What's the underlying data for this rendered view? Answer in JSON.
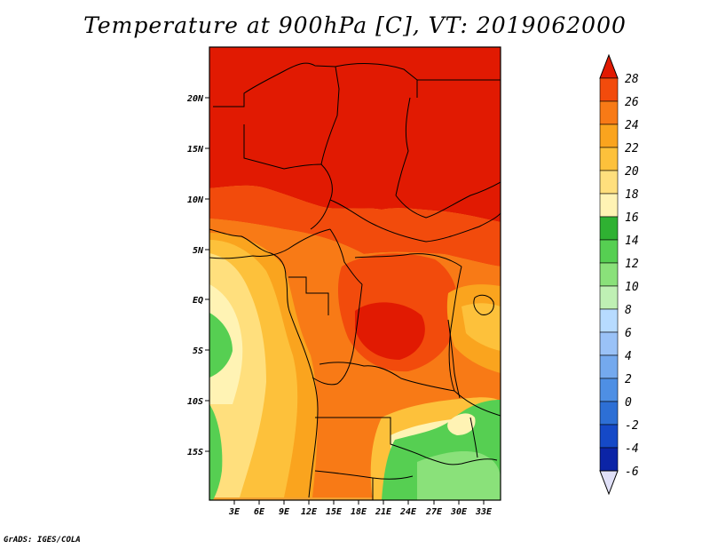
{
  "title": "Temperature at 900hPa [C], VT: 2019062000",
  "credit": "GrADS: IGES/COLA",
  "map": {
    "lon_range": [
      0,
      35
    ],
    "lat_range": [
      -20,
      24.5
    ],
    "lon_ticks": [
      "3E",
      "6E",
      "9E",
      "12E",
      "15E",
      "18E",
      "21E",
      "24E",
      "27E",
      "30E",
      "33E"
    ],
    "lat_ticks": [
      "20N",
      "15N",
      "10N",
      "5N",
      "EQ",
      "5S",
      "10S",
      "15S"
    ]
  },
  "colorbar": {
    "labels": [
      "28",
      "26",
      "24",
      "22",
      "20",
      "18",
      "16",
      "14",
      "12",
      "10",
      "8",
      "6",
      "4",
      "2",
      "0",
      "-2",
      "-4",
      "-6"
    ],
    "colors": [
      "#e11a02",
      "#f24b0c",
      "#f87a16",
      "#faa41e",
      "#fdc13b",
      "#ffdf7d",
      "#fff3b4",
      "#2fb132",
      "#56cf52",
      "#8ae17a",
      "#bff0b4",
      "#b7dbff",
      "#9ac2f7",
      "#74a9ee",
      "#4e8fe4",
      "#2d6fd5",
      "#1549c7",
      "#0b24a6",
      "#101067"
    ],
    "under_color": "#e0e0f8"
  }
}
